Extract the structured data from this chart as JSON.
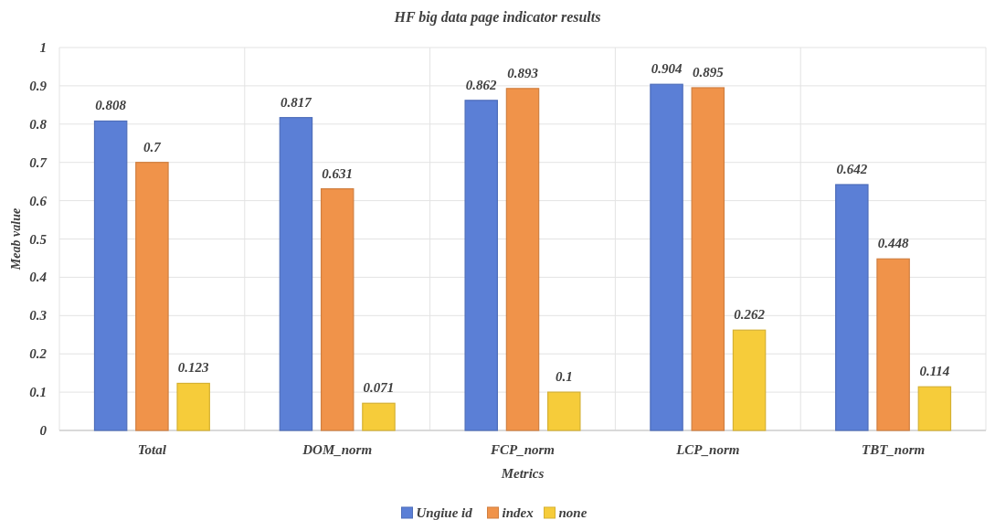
{
  "chart_data": {
    "type": "bar",
    "title": "HF big data page indicator results",
    "xlabel": "Metrics",
    "ylabel": "Meab value",
    "categories": [
      "Total",
      "DOM_norm",
      "FCP_norm",
      "LCP_norm",
      "TBT_norm"
    ],
    "series": [
      {
        "name": "Ungiue id",
        "color": "#5b7fd6",
        "values": [
          0.808,
          0.817,
          0.862,
          0.904,
          0.642
        ]
      },
      {
        "name": "index",
        "color": "#f0934a",
        "values": [
          0.7,
          0.631,
          0.893,
          0.895,
          0.448
        ]
      },
      {
        "name": "none",
        "color": "#f6cc3a",
        "values": [
          0.123,
          0.071,
          0.1,
          0.262,
          0.114
        ]
      }
    ],
    "ylim": [
      0,
      1
    ],
    "yticks": [
      0,
      0.1,
      0.2,
      0.3,
      0.4,
      0.5,
      0.6,
      0.7,
      0.8,
      0.9,
      1
    ],
    "grid": true,
    "legend": "bottom",
    "data_labels": true
  }
}
